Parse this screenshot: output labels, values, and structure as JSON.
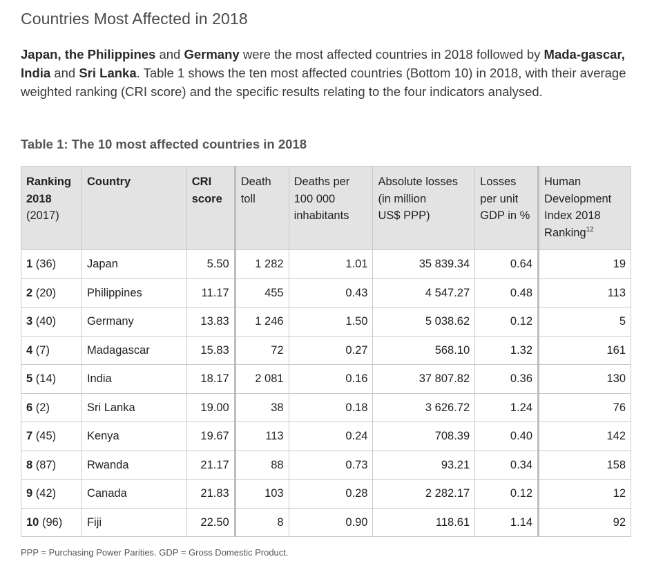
{
  "heading": "Countries Most Affected in 2018",
  "intro": {
    "c1": "Japan, the Philippines",
    "t1": " and ",
    "c2": "Germany",
    "t2": " were the most affected countries in 2018 followed by ",
    "c3": "Mada-gascar, India",
    "t3": " and ",
    "c4": "Sri Lanka",
    "t4": ". Table 1 shows the ten most affected countries (Bottom 10) in 2018, with their average weighted ranking (CRI score) and the specific results relating to the four indicators analysed."
  },
  "table_caption": "Table 1: The 10 most affected countries in 2018",
  "headers": {
    "ranking": [
      "Ranking",
      "2018",
      "(2017)"
    ],
    "country": "Country",
    "cri": [
      "CRI",
      "score"
    ],
    "death_toll": [
      "Death",
      "toll"
    ],
    "deaths_per": [
      "Deaths per",
      "100 000",
      "inhabitants"
    ],
    "losses": [
      "Absolute losses",
      "(in million",
      "US$ PPP)"
    ],
    "losses_gdp": [
      "Losses",
      "per unit",
      "GDP in %"
    ],
    "hdi": [
      "Human",
      "Development",
      "Index 2018",
      "Ranking"
    ],
    "hdi_sup": "12"
  },
  "rows": [
    {
      "rank": "1",
      "prev": "(36)",
      "country": "Japan",
      "cri": "5.50",
      "deaths": "1 282",
      "per100k": "1.01",
      "losses": "35 839.34",
      "gdp": "0.64",
      "hdi": "19"
    },
    {
      "rank": "2",
      "prev": "(20)",
      "country": "Philippines",
      "cri": "11.17",
      "deaths": "455",
      "per100k": "0.43",
      "losses": "4 547.27",
      "gdp": "0.48",
      "hdi": "113"
    },
    {
      "rank": "3",
      "prev": "(40)",
      "country": "Germany",
      "cri": "13.83",
      "deaths": "1 246",
      "per100k": "1.50",
      "losses": "5 038.62",
      "gdp": "0.12",
      "hdi": "5"
    },
    {
      "rank": "4",
      "prev": "(7)",
      "country": "Madagascar",
      "cri": "15.83",
      "deaths": "72",
      "per100k": "0.27",
      "losses": "568.10",
      "gdp": "1.32",
      "hdi": "161"
    },
    {
      "rank": "5",
      "prev": "(14)",
      "country": "India",
      "cri": "18.17",
      "deaths": "2 081",
      "per100k": "0.16",
      "losses": "37 807.82",
      "gdp": "0.36",
      "hdi": "130"
    },
    {
      "rank": "6",
      "prev": "(2)",
      "country": "Sri Lanka",
      "cri": "19.00",
      "deaths": "38",
      "per100k": "0.18",
      "losses": "3 626.72",
      "gdp": "1.24",
      "hdi": "76"
    },
    {
      "rank": "7",
      "prev": "(45)",
      "country": "Kenya",
      "cri": "19.67",
      "deaths": "113",
      "per100k": "0.24",
      "losses": "708.39",
      "gdp": "0.40",
      "hdi": "142"
    },
    {
      "rank": "8",
      "prev": "(87)",
      "country": "Rwanda",
      "cri": "21.17",
      "deaths": "88",
      "per100k": "0.73",
      "losses": "93.21",
      "gdp": "0.34",
      "hdi": "158"
    },
    {
      "rank": "9",
      "prev": "(42)",
      "country": "Canada",
      "cri": "21.83",
      "deaths": "103",
      "per100k": "0.28",
      "losses": "2 282.17",
      "gdp": "0.12",
      "hdi": "12"
    },
    {
      "rank": "10",
      "prev": "(96)",
      "country": "Fiji",
      "cri": "22.50",
      "deaths": "8",
      "per100k": "0.90",
      "losses": "118.61",
      "gdp": "1.14",
      "hdi": "92"
    }
  ],
  "footnote": "PPP = Purchasing Power Parities. GDP = Gross Domestic Product."
}
